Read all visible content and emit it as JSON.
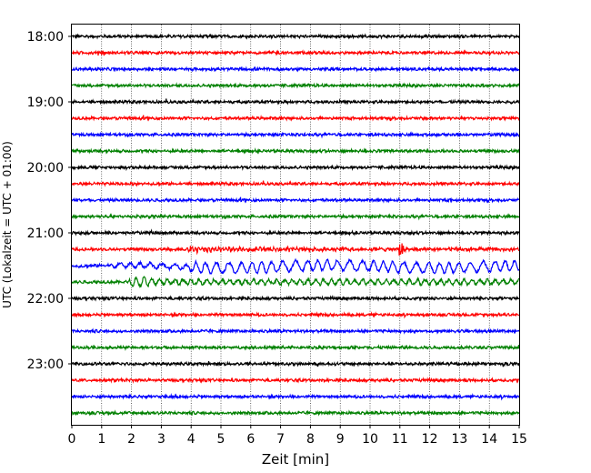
{
  "chart_data": {
    "type": "line",
    "xlabel": "Zeit  [min]",
    "ylabel": "UTC (Lokalzeit = UTC + 01:00)",
    "xlim": [
      0,
      15
    ],
    "x_ticks": [
      0,
      1,
      2,
      3,
      4,
      5,
      6,
      7,
      8,
      9,
      10,
      11,
      12,
      13,
      14,
      15
    ],
    "x_grid": true,
    "y_ticks": [
      "18:00",
      "19:00",
      "20:00",
      "21:00",
      "22:00",
      "23:00"
    ],
    "start_time": "18:00",
    "trace_interval_min": 15,
    "trace_count": 24,
    "color_cycle": [
      "#000000",
      "#ff0000",
      "#0000ff",
      "#008000"
    ],
    "event": {
      "onset_min": 3.9,
      "start_time": "21:15",
      "affected_traces": [
        "21:15",
        "21:30",
        "21:45"
      ]
    }
  }
}
